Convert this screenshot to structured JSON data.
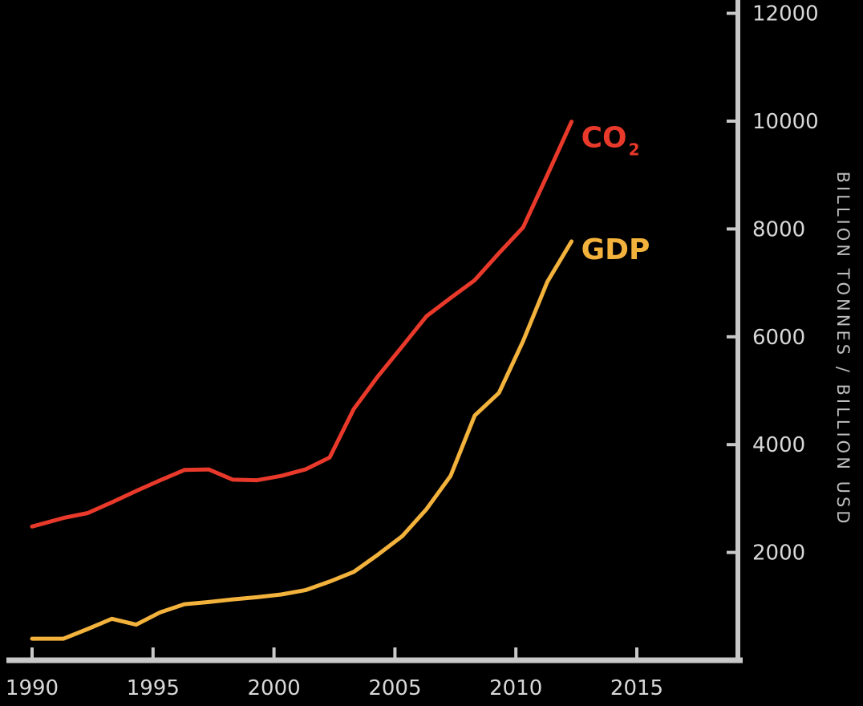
{
  "chart_data": {
    "type": "line",
    "title": "",
    "xlabel": "",
    "ylabel": "BILLION TONNES / BILLION USD",
    "xlim": [
      1990,
      2019
    ],
    "ylim": [
      0,
      12000
    ],
    "x_ticks": [
      "1990",
      "1995",
      "2000",
      "2005",
      "2010",
      "2015"
    ],
    "y_ticks": [
      "2000",
      "4000",
      "6000",
      "8000",
      "10000",
      "12000"
    ],
    "grid": false,
    "legend": "inline labels at line ends",
    "series": [
      {
        "name": "CO",
        "name_subscript": "2",
        "color": "#e8392a",
        "x": [
          1990,
          1991.3,
          1992.3,
          1993.3,
          1994.3,
          1995.3,
          1996.3,
          1997.3,
          1998.3,
          1999.3,
          2000.3,
          2001.3,
          2002.3,
          2003.3,
          2004.3,
          2005.3,
          2006.3,
          2007.3,
          2008.3,
          2009.3,
          2010.3,
          2011.3,
          2012.3
        ],
        "values": [
          2480,
          2640,
          2730,
          2930,
          3140,
          3340,
          3530,
          3540,
          3350,
          3340,
          3420,
          3540,
          3760,
          4660,
          5270,
          5820,
          6380,
          6720,
          7050,
          7550,
          8030,
          9000,
          9990
        ]
      },
      {
        "name": "GDP",
        "color": "#f2b23c",
        "x": [
          1990,
          1991.3,
          1992.3,
          1993.3,
          1994.3,
          1995.3,
          1996.3,
          1997.3,
          1998.3,
          1999.3,
          2000.3,
          2001.3,
          2002.3,
          2003.3,
          2004.3,
          2005.3,
          2006.3,
          2007.3,
          2008.3,
          2009.3,
          2010.3,
          2011.3,
          2012.3
        ],
        "values": [
          400,
          400,
          580,
          770,
          660,
          890,
          1040,
          1080,
          1130,
          1170,
          1220,
          1300,
          1460,
          1640,
          1960,
          2300,
          2800,
          3420,
          4540,
          4960,
          5920,
          7020,
          7770
        ]
      }
    ]
  }
}
